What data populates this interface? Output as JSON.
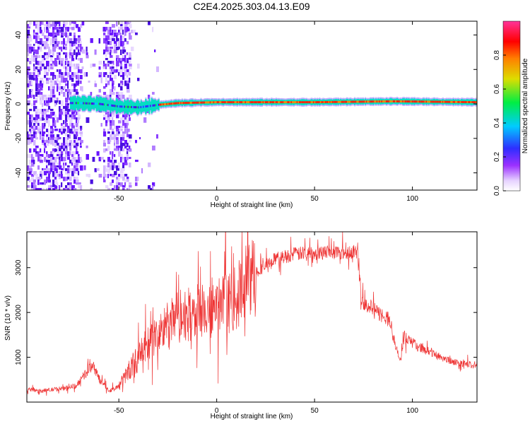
{
  "title": "C2E4.2025.303.04.13.E09",
  "chart_data": [
    {
      "type": "heatmap",
      "xlabel": "Height of straight line (km)",
      "ylabel": "Frequency (Hz)",
      "xlim": [
        -97,
        133
      ],
      "ylim": [
        -50,
        48
      ],
      "xticks": [
        -50,
        0,
        50,
        100
      ],
      "yticks": [
        -40,
        -20,
        0,
        20,
        40
      ],
      "band_center_hz": [
        {
          "x": -70,
          "y": 0.5
        },
        {
          "x": -60,
          "y": 0.0
        },
        {
          "x": -50,
          "y": -1.5
        },
        {
          "x": -40,
          "y": -2.0
        },
        {
          "x": -30,
          "y": -0.5
        },
        {
          "x": -20,
          "y": 0.5
        },
        {
          "x": 0,
          "y": 1.0
        },
        {
          "x": 50,
          "y": 1.0
        },
        {
          "x": 90,
          "y": 1.5
        },
        {
          "x": 133,
          "y": 1.0
        }
      ],
      "colorbar": {
        "label": "Normalized spectral amplitude",
        "range": [
          0,
          1
        ],
        "ticks": [
          "0.0",
          "0.2",
          "0.4",
          "0.6",
          "0.8"
        ]
      }
    },
    {
      "type": "line",
      "xlabel": "Height of straight line (km)",
      "ylabel": "SNR (10 * v/v)",
      "xlim": [
        -97,
        133
      ],
      "ylim": [
        0,
        3800
      ],
      "xticks": [
        -50,
        0,
        50,
        100
      ],
      "yticks": [
        1000,
        2000,
        3000
      ],
      "color": "#ee3333",
      "envelope": [
        {
          "x": -97,
          "y": 280
        },
        {
          "x": -90,
          "y": 250
        },
        {
          "x": -80,
          "y": 300
        },
        {
          "x": -72,
          "y": 360
        },
        {
          "x": -68,
          "y": 580
        },
        {
          "x": -63,
          "y": 850
        },
        {
          "x": -60,
          "y": 500
        },
        {
          "x": -55,
          "y": 250
        },
        {
          "x": -50,
          "y": 350
        },
        {
          "x": -45,
          "y": 700
        },
        {
          "x": -40,
          "y": 1000
        },
        {
          "x": -35,
          "y": 1300
        },
        {
          "x": -30,
          "y": 1500
        },
        {
          "x": -25,
          "y": 1700
        },
        {
          "x": -20,
          "y": 1900
        },
        {
          "x": -10,
          "y": 2000
        },
        {
          "x": 0,
          "y": 2100
        },
        {
          "x": 10,
          "y": 2300
        },
        {
          "x": 15,
          "y": 2700
        },
        {
          "x": 20,
          "y": 2900
        },
        {
          "x": 30,
          "y": 3200
        },
        {
          "x": 40,
          "y": 3300
        },
        {
          "x": 50,
          "y": 3350
        },
        {
          "x": 60,
          "y": 3350
        },
        {
          "x": 72,
          "y": 3350
        },
        {
          "x": 74,
          "y": 2300
        },
        {
          "x": 80,
          "y": 2050
        },
        {
          "x": 88,
          "y": 1850
        },
        {
          "x": 92,
          "y": 1150
        },
        {
          "x": 94,
          "y": 900
        },
        {
          "x": 96,
          "y": 1500
        },
        {
          "x": 100,
          "y": 1300
        },
        {
          "x": 110,
          "y": 1100
        },
        {
          "x": 120,
          "y": 900
        },
        {
          "x": 133,
          "y": 800
        }
      ]
    }
  ]
}
